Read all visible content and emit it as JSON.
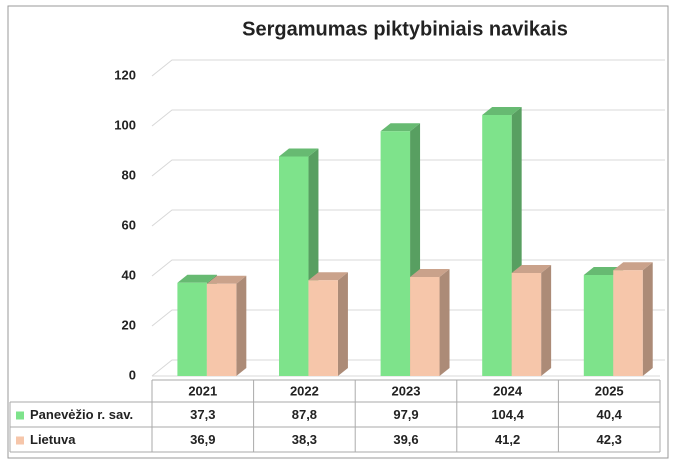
{
  "chart_data": {
    "type": "bar",
    "title": "Sergamumas piktybiniais navikais",
    "categories": [
      "2021",
      "2022",
      "2023",
      "2024",
      "2025"
    ],
    "series": [
      {
        "name": "Panevėžio r. sav.",
        "color": "#7ee38b",
        "values": [
          37.3,
          87.8,
          97.9,
          104.4,
          40.4
        ],
        "value_labels": [
          "37,3",
          "87,8",
          "97,9",
          "104,4",
          "40,4"
        ]
      },
      {
        "name": "Lietuva",
        "color": "#f6c6aa",
        "values": [
          36.9,
          38.3,
          39.6,
          41.2,
          42.3
        ],
        "value_labels": [
          "36,9",
          "38,3",
          "39,6",
          "41,2",
          "42,3"
        ]
      }
    ],
    "ylim": [
      0,
      120
    ],
    "yticks": [
      0,
      20,
      40,
      60,
      80,
      100,
      120
    ],
    "grid": true
  }
}
